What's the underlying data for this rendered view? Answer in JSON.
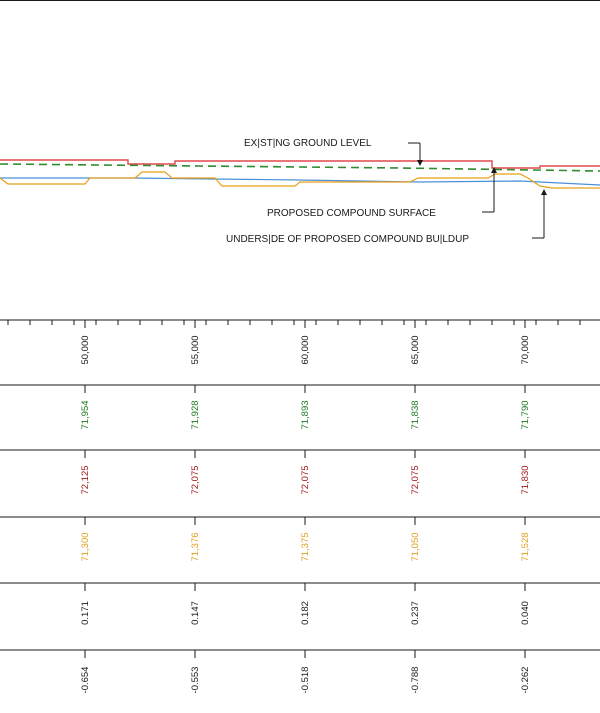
{
  "colors": {
    "existing_ground": "#2e8b2e",
    "proposed_surface": "#e0484c",
    "underside": "#e8a019",
    "blue_line": "#4a90d9",
    "ink": "#1a1a1a",
    "row_green": "#1e7a1e",
    "row_red": "#a11a1a",
    "row_orange": "#e0a020"
  },
  "annotations": {
    "existing_ground": "EX|ST|NG GROUND LEVEL",
    "proposed_surface": "PROPOSED COMPOUND SURFACE",
    "underside": "UNDERS|DE OF PROPOSED COMPOUND BU|LDUP"
  },
  "chart_data": {
    "type": "table",
    "columns": [
      {
        "chainage": "50,000",
        "existing": "71,954",
        "proposed": "72,125",
        "underside": "71,300",
        "diff1": "0.171",
        "diff2": "-0.654"
      },
      {
        "chainage": "55,000",
        "existing": "71,928",
        "proposed": "72,075",
        "underside": "71,376",
        "diff1": "0.147",
        "diff2": "-0.553"
      },
      {
        "chainage": "60,000",
        "existing": "71,893",
        "proposed": "72,075",
        "underside": "71,375",
        "diff1": "0.182",
        "diff2": "-0.518"
      },
      {
        "chainage": "65,000",
        "existing": "71,838",
        "proposed": "72,075",
        "underside": "71,050",
        "diff1": "0.237",
        "diff2": "-0.788"
      },
      {
        "chainage": "70,000",
        "existing": "71,790",
        "proposed": "71,830",
        "underside": "71,528",
        "diff1": "0.040",
        "diff2": "-0.262"
      }
    ]
  }
}
